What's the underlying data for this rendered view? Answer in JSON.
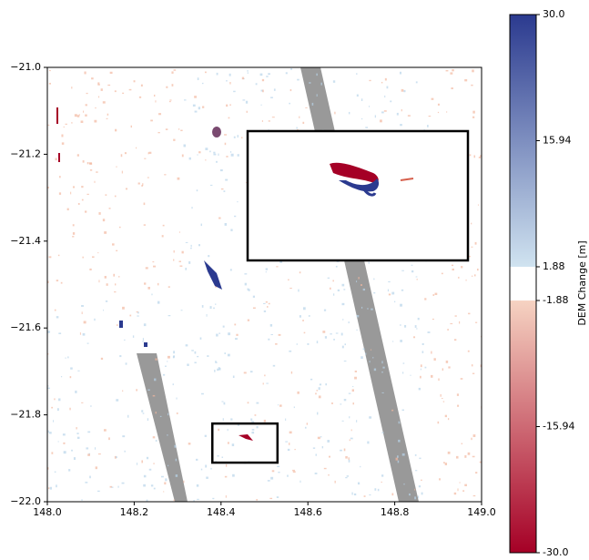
{
  "chart_data": {
    "type": "raster",
    "xlim": [
      148.0,
      149.0
    ],
    "ylim": [
      -22.0,
      -21.0
    ],
    "xticks": [
      {
        "value": 148.0,
        "label": "148.0"
      },
      148.2,
      148.4,
      148.6,
      148.8,
      {
        "value": 149.0,
        "label": "149.0"
      }
    ],
    "yticks": [
      {
        "value": -21.0,
        "label": "−21.0"
      },
      {
        "value": -21.2,
        "label": "−21.2"
      },
      {
        "value": -21.4,
        "label": "−21.4"
      },
      {
        "value": -21.6,
        "label": "−21.6"
      },
      {
        "value": -21.8,
        "label": "−21.8"
      },
      {
        "value": -22.0,
        "label": "−22.0"
      }
    ],
    "zoom_box": {
      "x": [
        148.38,
        148.53
      ],
      "y": [
        -21.91,
        -21.82
      ]
    },
    "colorbar": {
      "label": "DEM Change [m]",
      "lim": [
        -30.0,
        30.0
      ],
      "ticks": [
        {
          "value": 30.0,
          "label": "30.0"
        },
        15.94,
        1.88,
        -1.88,
        -15.94,
        {
          "value": -30.0,
          "label": "-30.0"
        }
      ],
      "colors": [
        "#a50026",
        "#f6d3c2",
        "#d0e3f0",
        "#2b3a8f"
      ]
    }
  }
}
